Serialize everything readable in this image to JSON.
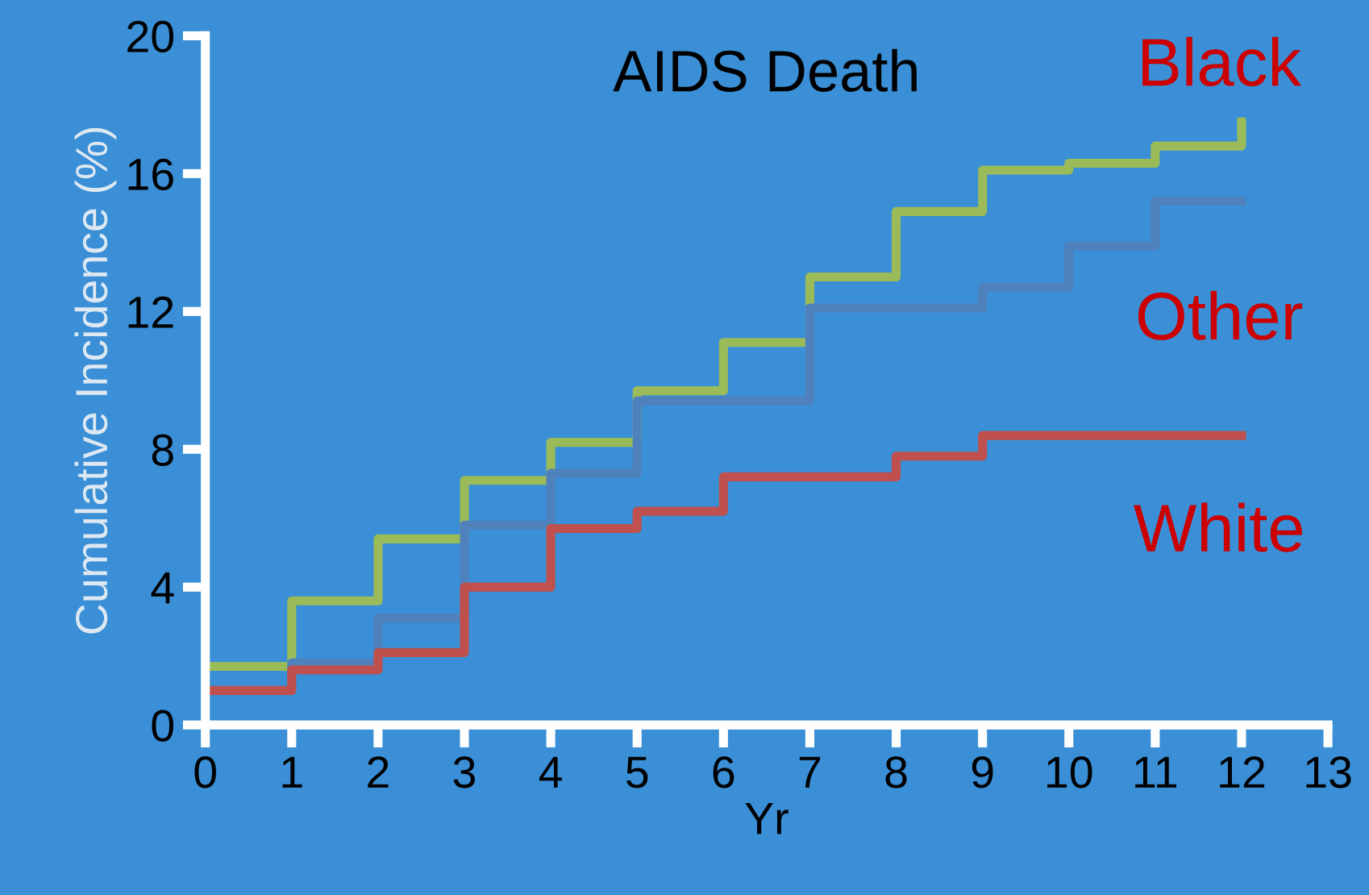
{
  "chart_data": {
    "type": "step",
    "title": "AIDS Death",
    "xlabel": "Yr",
    "ylabel": "Cumulative Incidence (%)",
    "xlim": [
      0,
      13
    ],
    "xticks": [
      0,
      1,
      2,
      3,
      4,
      5,
      6,
      7,
      8,
      9,
      10,
      11,
      12,
      13
    ],
    "ylim": [
      0,
      20
    ],
    "yticks": [
      0,
      4,
      8,
      12,
      16,
      20
    ],
    "grid": false,
    "legend": false,
    "series": [
      {
        "name": "Black",
        "color": "#9bbb59",
        "x": [
          0,
          1,
          2,
          3,
          4,
          5,
          6,
          7,
          8,
          9,
          10,
          11,
          12
        ],
        "values": [
          1.7,
          3.6,
          5.4,
          7.1,
          8.2,
          9.7,
          11.1,
          13.0,
          14.9,
          16.1,
          16.3,
          16.8,
          17.5
        ]
      },
      {
        "name": "Other",
        "color": "#4f81bd",
        "x": [
          0,
          1,
          2,
          3,
          4,
          5,
          7,
          9,
          10,
          11,
          12
        ],
        "values": [
          1.0,
          1.8,
          3.1,
          5.8,
          7.3,
          9.4,
          12.1,
          12.7,
          13.9,
          15.2,
          15.2
        ]
      },
      {
        "name": "White",
        "color": "#c0504d",
        "x": [
          0,
          1,
          2,
          3,
          4,
          5,
          6,
          8,
          9,
          12
        ],
        "values": [
          1.0,
          1.6,
          2.1,
          4.0,
          5.7,
          6.2,
          7.2,
          7.8,
          8.4,
          8.4
        ]
      }
    ]
  }
}
